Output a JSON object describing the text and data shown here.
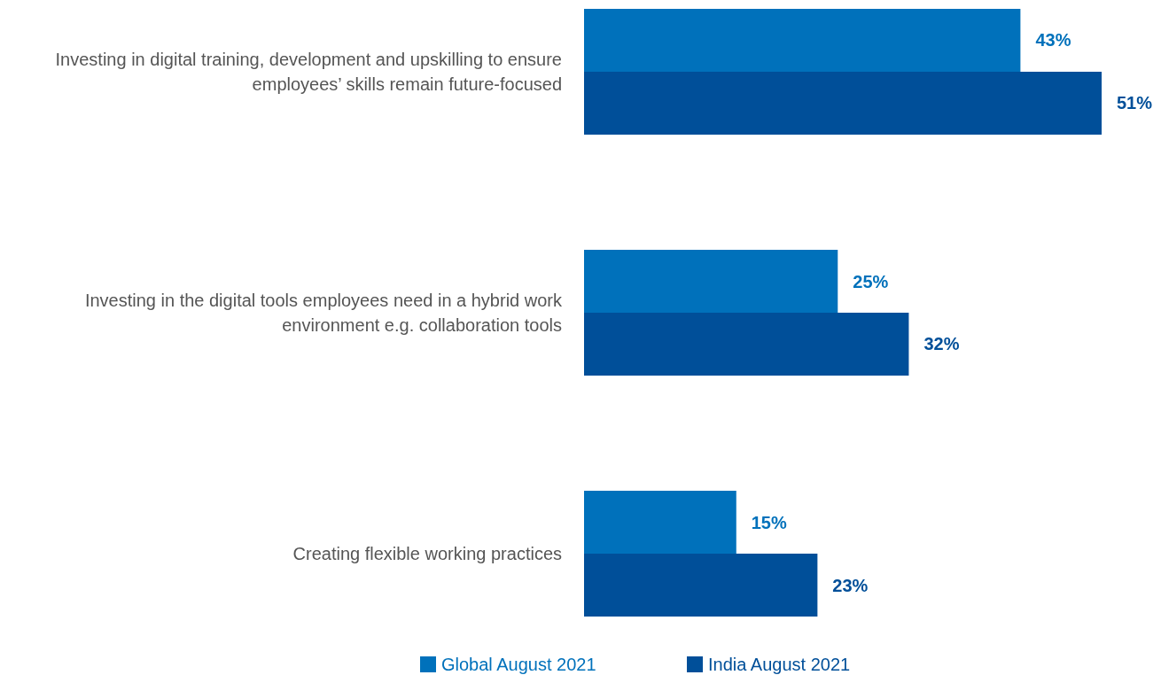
{
  "chart_data": {
    "type": "bar",
    "orientation": "horizontal",
    "legend": "bottom",
    "categories": [
      "Investing in digital training, development and upskilling to ensure employees’ skills remain future-focused",
      "Investing in the digital tools employees need in a hybrid work environment e.g. collaboration tools",
      "Creating flexible working practices"
    ],
    "series": [
      {
        "name": "Global August 2021",
        "color": "#0071bb",
        "values": [
          43,
          25,
          15
        ],
        "value_labels": [
          "43%",
          "25%",
          "15%"
        ]
      },
      {
        "name": "India August 2021",
        "color": "#004f99",
        "values": [
          51,
          32,
          23
        ],
        "value_labels": [
          "51%",
          "32%",
          "23%"
        ]
      }
    ]
  }
}
